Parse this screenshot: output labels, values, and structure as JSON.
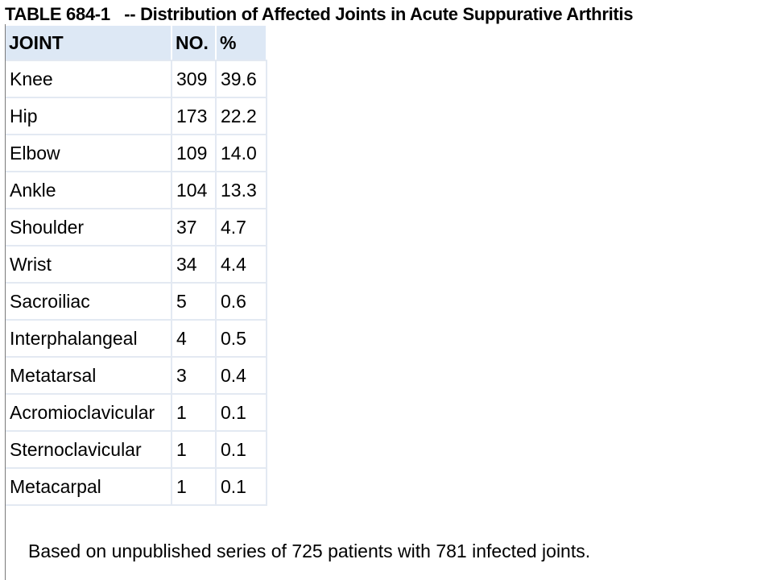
{
  "title": "TABLE 684-1   -- Distribution of Affected Joints in Acute Suppurative Arthritis",
  "table": {
    "headers": [
      "JOINT",
      "NO.",
      "%"
    ],
    "rows": [
      {
        "joint": "Knee",
        "no": "309",
        "pct": "39.6"
      },
      {
        "joint": "Hip",
        "no": "173",
        "pct": "22.2"
      },
      {
        "joint": "Elbow",
        "no": "109",
        "pct": "14.0"
      },
      {
        "joint": "Ankle",
        "no": "104",
        "pct": "13.3"
      },
      {
        "joint": "Shoulder",
        "no": "37",
        "pct": "4.7"
      },
      {
        "joint": "Wrist",
        "no": "34",
        "pct": "4.4"
      },
      {
        "joint": "Sacroiliac",
        "no": "5",
        "pct": "0.6"
      },
      {
        "joint": "Interphalangeal",
        "no": "4",
        "pct": "0.5"
      },
      {
        "joint": "Metatarsal",
        "no": "3",
        "pct": "0.4"
      },
      {
        "joint": "Acromioclavicular",
        "no": "1",
        "pct": "0.1"
      },
      {
        "joint": "Sternoclavicular",
        "no": "1",
        "pct": "0.1"
      },
      {
        "joint": "Metacarpal",
        "no": "1",
        "pct": "0.1"
      }
    ]
  },
  "footnote": "Based on unpublished series of 725 patients with 781 infected joints."
}
